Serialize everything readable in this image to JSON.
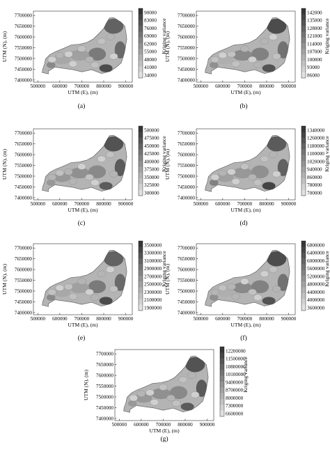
{
  "chart_data": [
    {
      "id": "a",
      "type": "heatmap",
      "caption": "(a)",
      "xlabel": "UTM (E),  (m)",
      "ylabel": "UTM (N),  (m)",
      "legend_title": "Kriging variance",
      "x_ticks": [
        "500000",
        "600000",
        "700000",
        "800000",
        "900000"
      ],
      "y_ticks": [
        "7700000",
        "7650000",
        "7600000",
        "7550000",
        "7500000",
        "7450000",
        "7400000"
      ],
      "legend_values": [
        "90000",
        "83000",
        "76000",
        "69000",
        "62000",
        "55000",
        "48000",
        "41000",
        "34000"
      ],
      "color_range": [
        34000,
        90000
      ]
    },
    {
      "id": "b",
      "type": "heatmap",
      "caption": "(b)",
      "xlabel": "UTM (E),  (m)",
      "ylabel": "UTM (N),  (m)",
      "legend_title": "Kriging variance",
      "x_ticks": [
        "500000",
        "600000",
        "700000",
        "800000",
        "900000"
      ],
      "y_ticks": [
        "7700000",
        "7650000",
        "7600000",
        "7550000",
        "7500000",
        "7450000",
        "7400000"
      ],
      "legend_values": [
        "142000",
        "135000",
        "128000",
        "121000",
        "114000",
        "107000",
        "100000",
        "93000",
        "86000"
      ],
      "color_range": [
        86000,
        142000
      ]
    },
    {
      "id": "c",
      "type": "heatmap",
      "caption": "(c)",
      "xlabel": "UTM (E),  (m)",
      "ylabel": "UTM (N),  (m)",
      "legend_title": "Kriging variance",
      "x_ticks": [
        "500000",
        "600000",
        "700000",
        "800000",
        "900000"
      ],
      "y_ticks": [
        "7700000",
        "7650000",
        "7600000",
        "7550000",
        "7500000",
        "7450000",
        "7400000"
      ],
      "legend_values": [
        "500000",
        "475000",
        "450000",
        "425000",
        "400000",
        "375000",
        "350000",
        "325000",
        "300000"
      ],
      "color_range": [
        300000,
        500000
      ]
    },
    {
      "id": "d",
      "type": "heatmap",
      "caption": "(d)",
      "xlabel": "UTM (E),  (m)",
      "ylabel": "UTM (N),  (m)",
      "legend_title": "Kriging variance",
      "x_ticks": [
        "500000",
        "600000",
        "700000",
        "800000",
        "900000"
      ],
      "y_ticks": [
        "7700000",
        "7650000",
        "7600000",
        "7550000",
        "7500000",
        "7450000",
        "7400000"
      ],
      "legend_values": [
        "1340000",
        "1260000",
        "1180000",
        "1100000",
        "1020000",
        "940000",
        "860000",
        "780000",
        "700000"
      ],
      "color_range": [
        700000,
        1340000
      ]
    },
    {
      "id": "e",
      "type": "heatmap",
      "caption": "(e)",
      "xlabel": "UTM (E),  (m)",
      "ylabel": "UTM (N),  (m)",
      "legend_title": "Kriging variance",
      "x_ticks": [
        "500000",
        "600000",
        "700000",
        "800000",
        "900000"
      ],
      "y_ticks": [
        "7700000",
        "7650000",
        "7600000",
        "7550000",
        "7500000",
        "7450000",
        "7400000"
      ],
      "legend_values": [
        "3500000",
        "3300000",
        "3100000",
        "2900000",
        "2700000",
        "2500000",
        "2300000",
        "2100000",
        "1900000"
      ],
      "color_range": [
        1900000,
        3500000
      ]
    },
    {
      "id": "f",
      "type": "heatmap",
      "caption": "(f)",
      "xlabel": "UTM (E),  (m)",
      "ylabel": "UTM (N),  (m)",
      "legend_title": "Kriging variance",
      "x_ticks": [
        "500000",
        "600000",
        "700000",
        "800000",
        "900000"
      ],
      "y_ticks": [
        "7700000",
        "7650000",
        "7600000",
        "7550000",
        "7500000",
        "7450000",
        "7400000"
      ],
      "legend_values": [
        "6800000",
        "6400000",
        "6000000",
        "5600000",
        "5200000",
        "4800000",
        "4400000",
        "4000000",
        "3600000"
      ],
      "color_range": [
        3600000,
        6800000
      ]
    },
    {
      "id": "g",
      "type": "heatmap",
      "caption": "(g)",
      "xlabel": "UTM (E),  (m)",
      "ylabel": "UTM (N),  (m)",
      "legend_title": "Kriging variance",
      "x_ticks": [
        "500000",
        "600000",
        "700000",
        "800000",
        "900000"
      ],
      "y_ticks": [
        "7700000",
        "7650000",
        "7600000",
        "7550000",
        "7500000",
        "7450000",
        "7400000"
      ],
      "legend_values": [
        "12200000",
        "11500000",
        "10800000",
        "10100000",
        "9400000",
        "8700000",
        "8000000",
        "7300000",
        "6600000"
      ],
      "color_range": [
        6600000,
        12200000
      ]
    }
  ]
}
